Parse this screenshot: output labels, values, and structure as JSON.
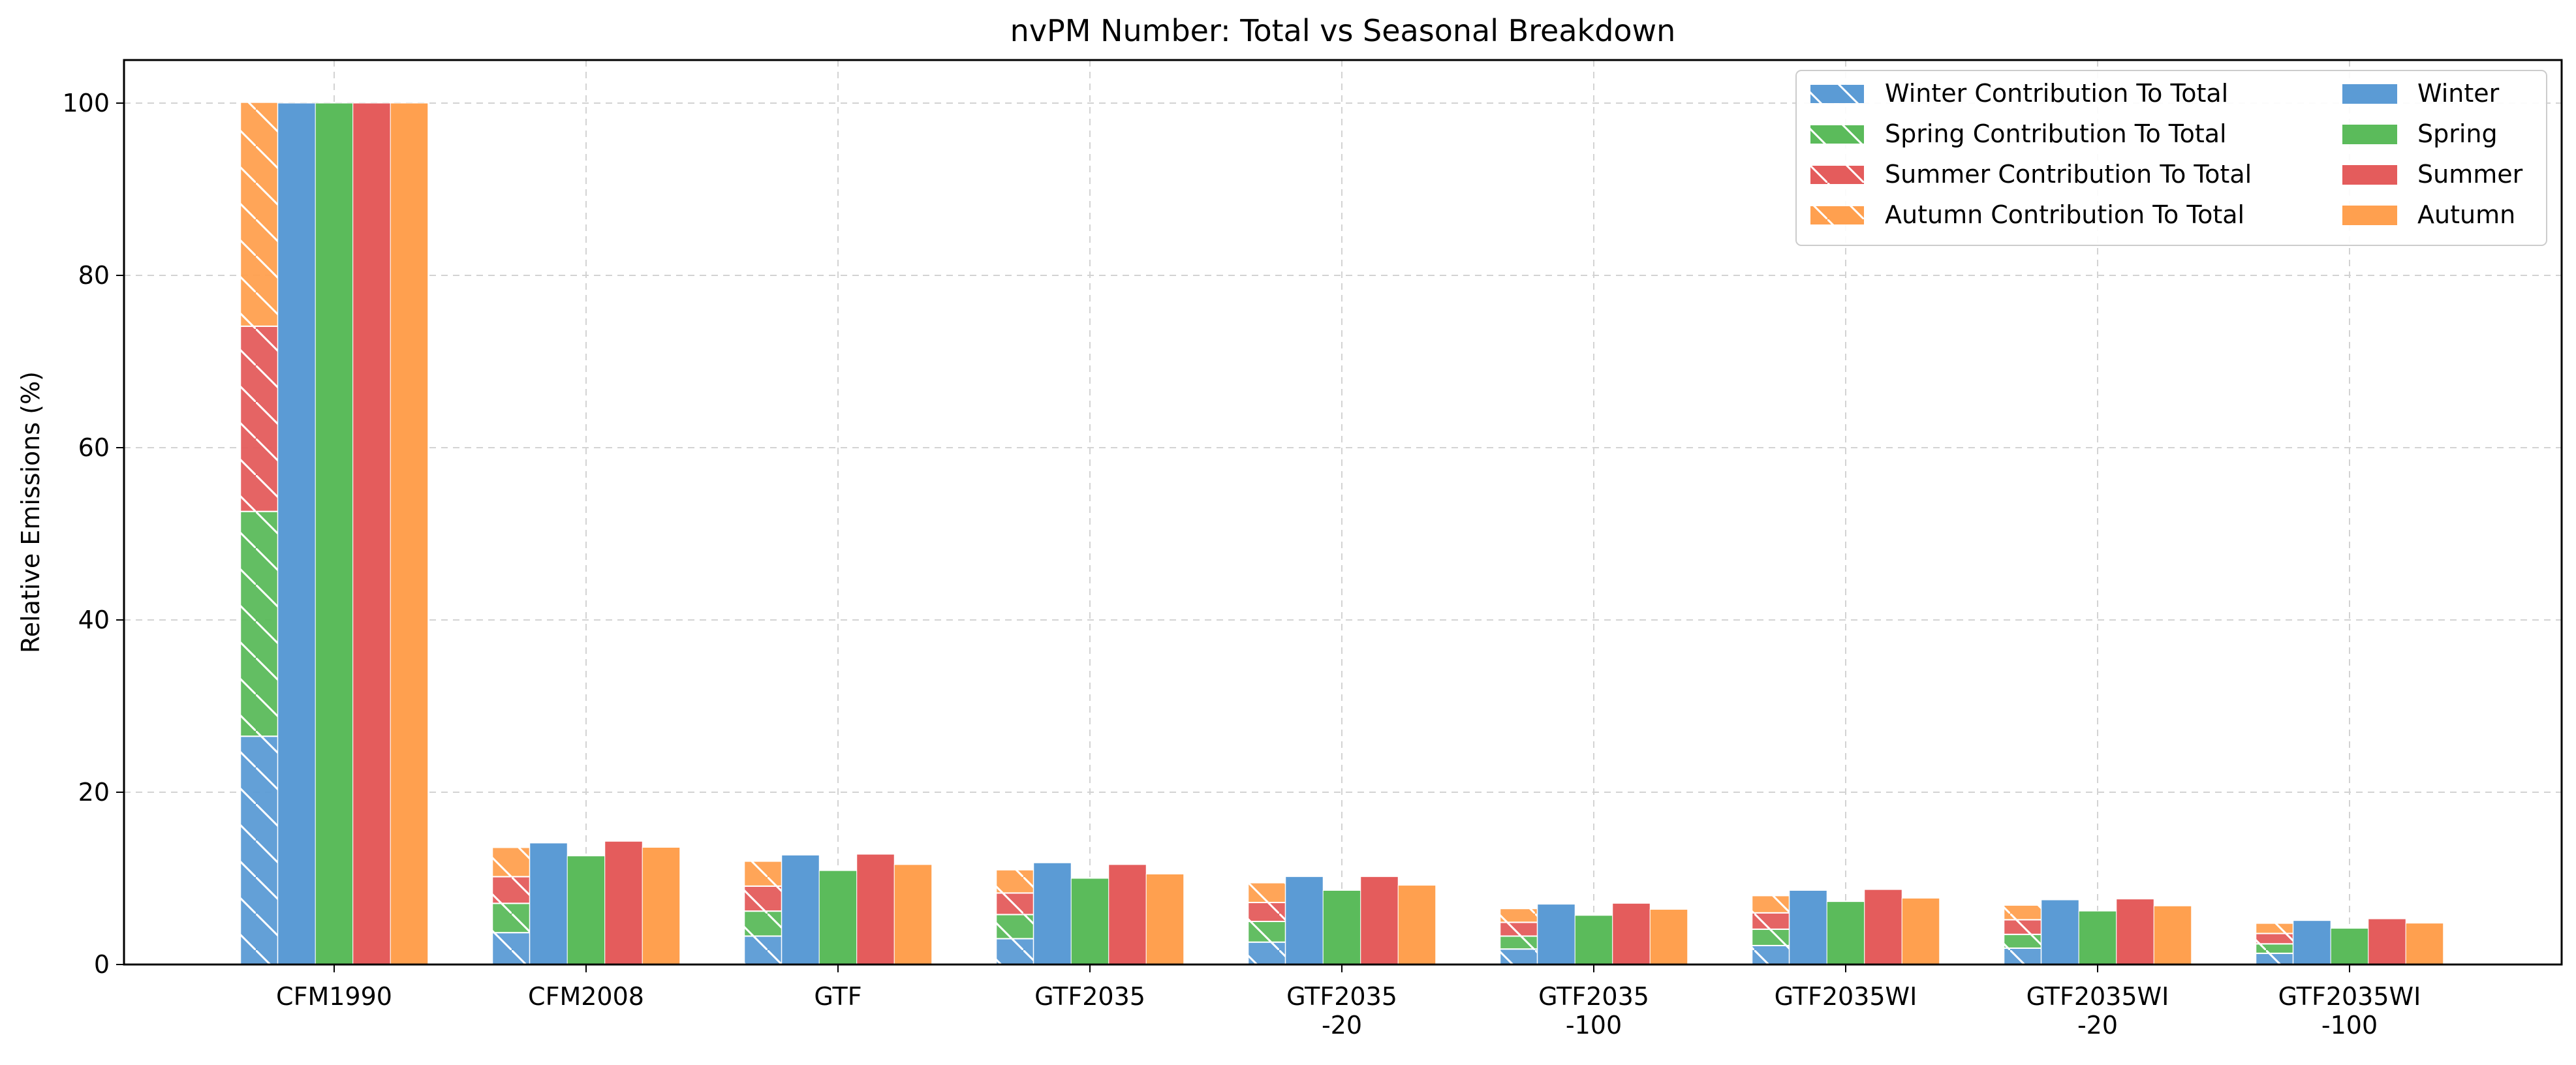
{
  "chart_data": {
    "type": "bar",
    "title": "nvPM Number: Total vs Seasonal Breakdown",
    "xlabel": "",
    "ylabel": "Relative Emissions (%)",
    "ylim": [
      0,
      105
    ],
    "yticks": [
      0,
      20,
      40,
      60,
      80,
      100
    ],
    "grid": true,
    "legend_position": "top-right",
    "categories": [
      [
        "CFM1990"
      ],
      [
        "CFM2008"
      ],
      [
        "GTF"
      ],
      [
        "GTF2035"
      ],
      [
        "GTF2035",
        "-20"
      ],
      [
        "GTF2035",
        "-100"
      ],
      [
        "GTF2035WI"
      ],
      [
        "GTF2035WI",
        "-20"
      ],
      [
        "GTF2035WI",
        "-100"
      ]
    ],
    "colors": {
      "Winter": "#5b9bd5",
      "Spring": "#5bbb5b",
      "Summer": "#e45c5c",
      "Autumn": "#ffa04f"
    },
    "stacked_series": [
      {
        "name": "Winter Contribution To Total",
        "season": "Winter",
        "values": [
          26.5,
          3.7,
          3.3,
          3.0,
          2.6,
          1.8,
          2.2,
          1.9,
          1.3
        ]
      },
      {
        "name": "Spring Contribution To Total",
        "season": "Spring",
        "values": [
          26.1,
          3.4,
          2.9,
          2.8,
          2.4,
          1.5,
          1.9,
          1.6,
          1.1
        ]
      },
      {
        "name": "Summer Contribution To Total",
        "season": "Summer",
        "values": [
          21.5,
          3.1,
          2.9,
          2.5,
          2.2,
          1.6,
          1.9,
          1.7,
          1.2
        ]
      },
      {
        "name": "Autumn Contribution To Total",
        "season": "Autumn",
        "values": [
          26.0,
          3.4,
          2.9,
          2.7,
          2.3,
          1.6,
          2.0,
          1.7,
          1.2
        ]
      }
    ],
    "series": [
      {
        "name": "Winter",
        "values": [
          100,
          14.1,
          12.7,
          11.8,
          10.2,
          7.0,
          8.6,
          7.5,
          5.1
        ]
      },
      {
        "name": "Spring",
        "values": [
          100,
          12.6,
          10.9,
          10.0,
          8.6,
          5.7,
          7.3,
          6.2,
          4.2
        ]
      },
      {
        "name": "Summer",
        "values": [
          100,
          14.3,
          12.8,
          11.6,
          10.2,
          7.1,
          8.7,
          7.6,
          5.3
        ]
      },
      {
        "name": "Autumn",
        "values": [
          100,
          13.6,
          11.6,
          10.5,
          9.2,
          6.4,
          7.7,
          6.8,
          4.8
        ]
      }
    ]
  }
}
